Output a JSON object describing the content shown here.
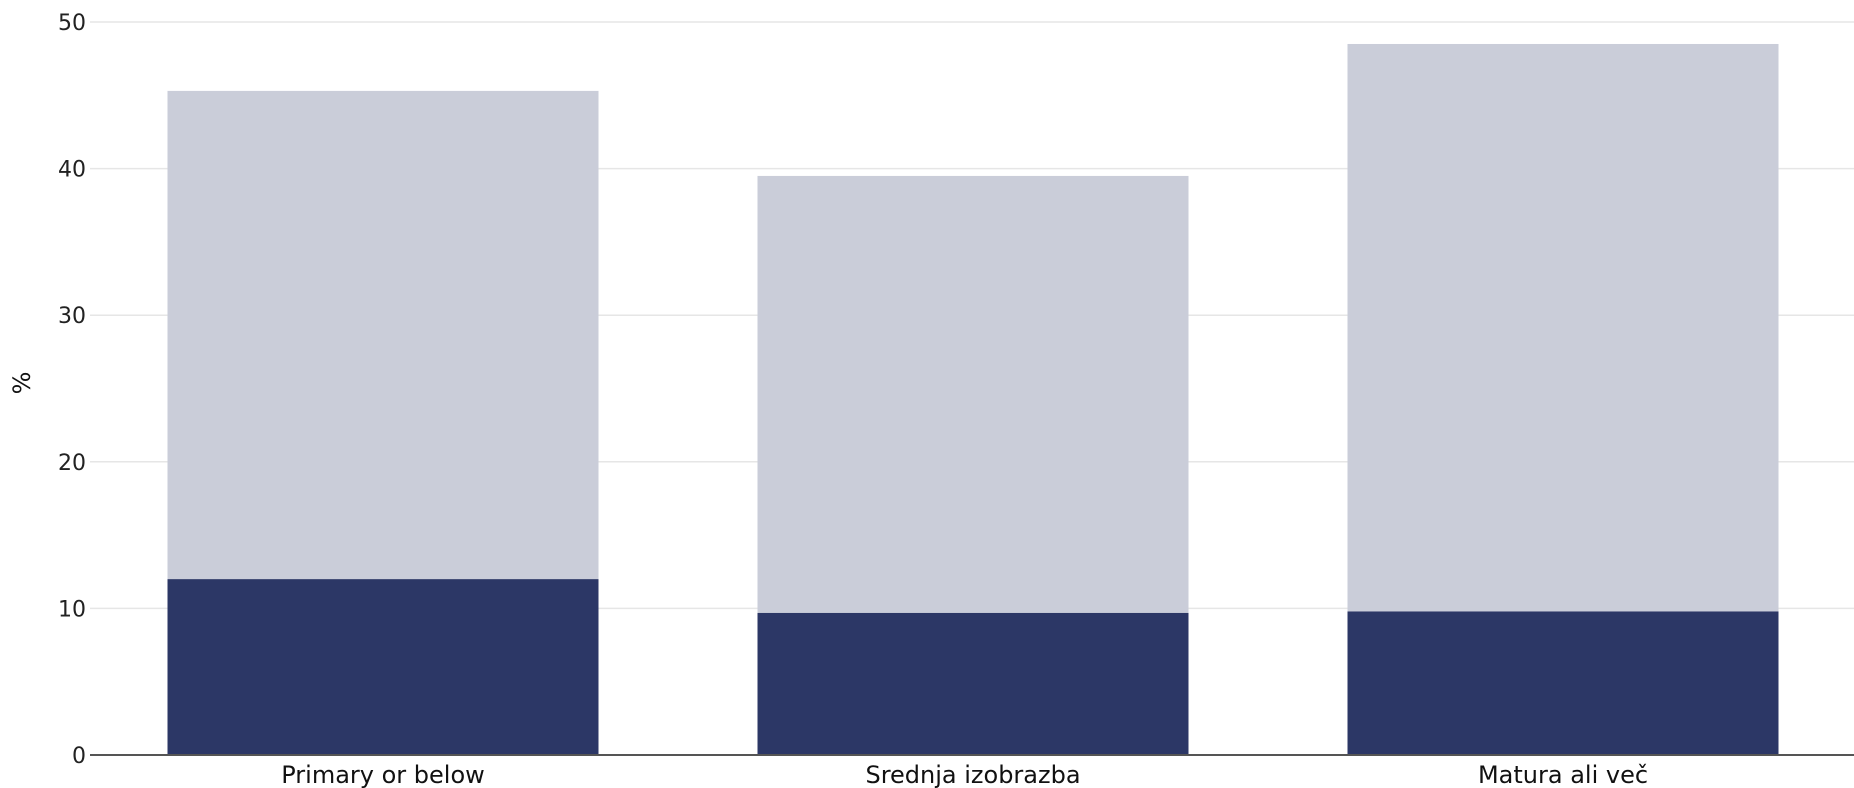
{
  "chart_data": {
    "type": "bar",
    "stacked": true,
    "categories": [
      "Primary or below",
      "Srednja izobrazba",
      "Matura ali več"
    ],
    "series": [
      {
        "values": [
          12.0,
          9.7,
          9.8
        ],
        "color": "#2c3766"
      },
      {
        "values": [
          33.3,
          29.8,
          38.7
        ],
        "color": "#cacdd9"
      }
    ],
    "totals": [
      45.3,
      39.5,
      48.5
    ],
    "ylabel": "%",
    "ylim": [
      0,
      50
    ],
    "yticks": [
      0,
      10,
      20,
      30,
      40,
      50
    ],
    "grid": true,
    "legend": "none"
  }
}
